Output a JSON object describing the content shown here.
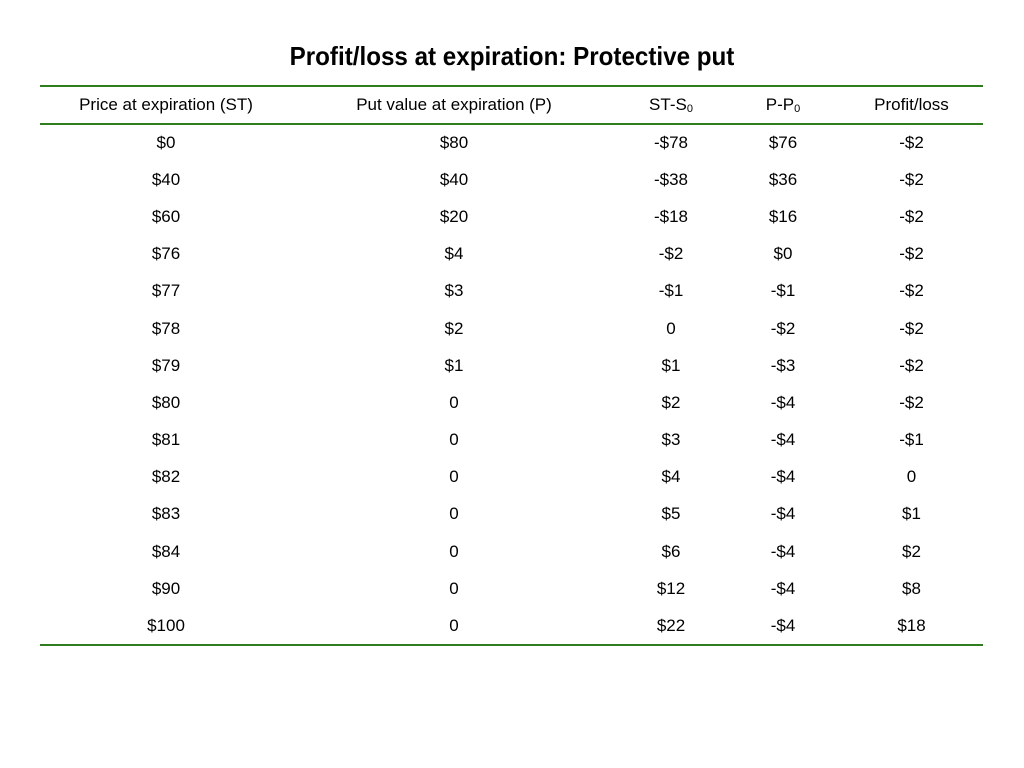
{
  "title": "Profit/loss at expiration: Protective put",
  "table": {
    "headers": [
      {
        "main": "Price at expiration (ST)",
        "sub": ""
      },
      {
        "main": "Put value at expiration (P)",
        "sub": ""
      },
      {
        "main": "ST-S",
        "sub": "0"
      },
      {
        "main": "P-P",
        "sub": "0"
      },
      {
        "main": "Profit/loss",
        "sub": ""
      }
    ],
    "rows": [
      [
        "$0",
        "$80",
        "-$78",
        "$76",
        "-$2"
      ],
      [
        "$40",
        "$40",
        "-$38",
        "$36",
        "-$2"
      ],
      [
        "$60",
        "$20",
        "-$18",
        "$16",
        "-$2"
      ],
      [
        "$76",
        "$4",
        "-$2",
        "$0",
        "-$2"
      ],
      [
        "$77",
        "$3",
        "-$1",
        "-$1",
        "-$2"
      ],
      [
        "$78",
        "$2",
        "0",
        "-$2",
        "-$2"
      ],
      [
        "$79",
        "$1",
        "$1",
        "-$3",
        "-$2"
      ],
      [
        "$80",
        "0",
        "$2",
        "-$4",
        "-$2"
      ],
      [
        "$81",
        "0",
        "$3",
        "-$4",
        "-$1"
      ],
      [
        "$82",
        "0",
        "$4",
        "-$4",
        "0"
      ],
      [
        "$83",
        "0",
        "$5",
        "-$4",
        "$1"
      ],
      [
        "$84",
        "0",
        "$6",
        "-$4",
        "$2"
      ],
      [
        "$90",
        "0",
        "$12",
        "-$4",
        "$8"
      ],
      [
        "$100",
        "0",
        "$22",
        "-$4",
        "$18"
      ]
    ]
  },
  "colors": {
    "rule": "#2e7d1f",
    "text": "#000000",
    "background": "#ffffff"
  }
}
